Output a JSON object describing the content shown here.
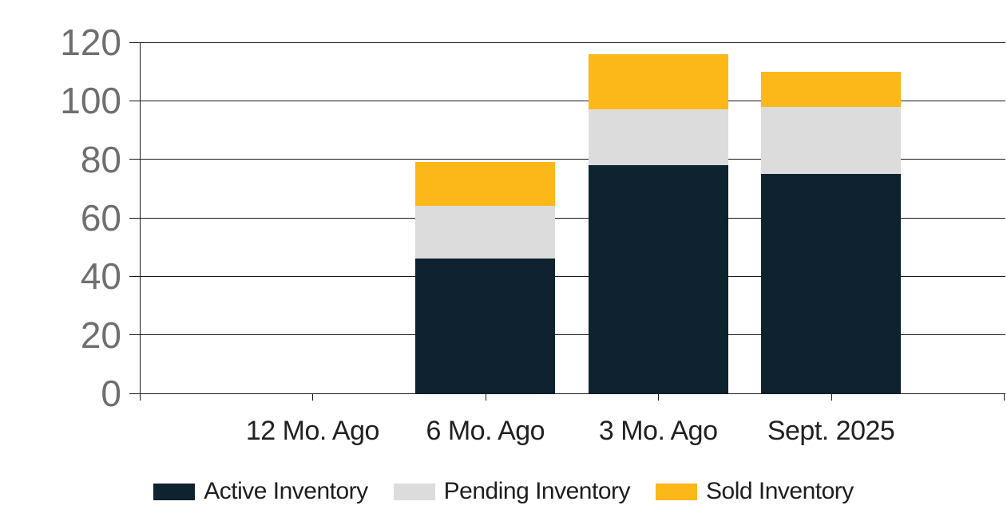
{
  "chart_data": {
    "type": "bar",
    "stacked": true,
    "title": "",
    "xlabel": "",
    "ylabel": "",
    "categories": [
      "12 Mo. Ago",
      "6 Mo. Ago",
      "3 Mo. Ago",
      "Sept. 2025"
    ],
    "series": [
      {
        "name": "Active Inventory",
        "color": "#0e2230",
        "values": [
          0,
          46,
          78,
          75
        ]
      },
      {
        "name": "Pending Inventory",
        "color": "#dcdcdc",
        "values": [
          0,
          18,
          19,
          23
        ]
      },
      {
        "name": "Sold Inventory",
        "color": "#fcb719",
        "values": [
          0,
          15,
          19,
          12
        ]
      }
    ],
    "stack_totals": [
      0,
      79,
      116,
      110
    ],
    "ylim": [
      0,
      120
    ],
    "yticks": [
      0,
      20,
      40,
      60,
      80,
      100,
      120
    ],
    "grid": true,
    "legend_position": "bottom"
  },
  "colors": {
    "axis_and_grid": "#1a1a1a",
    "y_tick_label": "#6f6f6f",
    "x_tick_label": "#212121",
    "legend_text": "#1e1e1e",
    "background": "#ffffff"
  }
}
